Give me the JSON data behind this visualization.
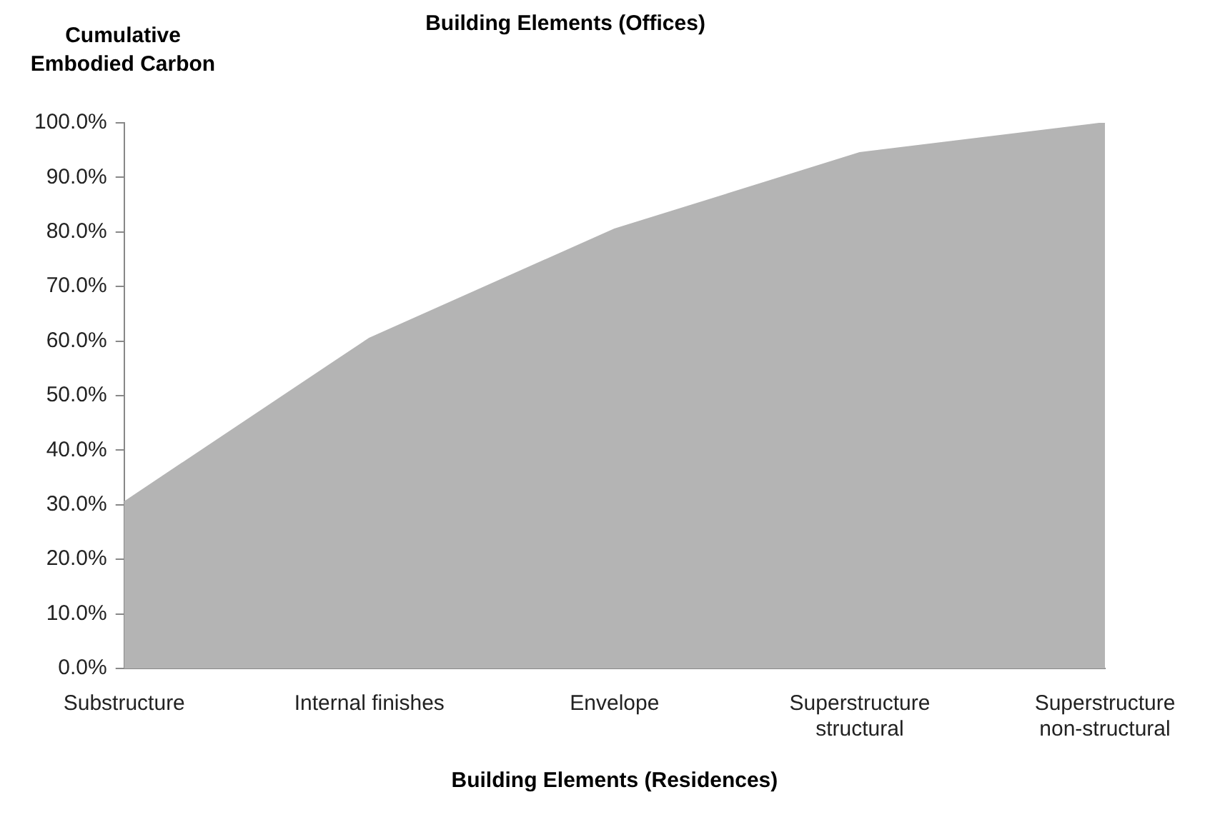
{
  "chart_data": {
    "type": "area",
    "title": "Building Elements (Offices)",
    "xlabel": "Building Elements (Residences)",
    "ylabel": "Cumulative Embodied Carbon",
    "categories": [
      "Substructure",
      "Internal finishes",
      "Envelope",
      "Superstructure structural",
      "Superstructure non-structural"
    ],
    "values": [
      30.5,
      60.5,
      80.5,
      94.5,
      100
    ],
    "color": "#b4b4b4",
    "ylim": [
      0,
      100
    ],
    "yticks": [
      {
        "value": 0,
        "label": "0.0%"
      },
      {
        "value": 10,
        "label": "10.0%"
      },
      {
        "value": 20,
        "label": "20.0%"
      },
      {
        "value": 30,
        "label": "30.0%"
      },
      {
        "value": 40,
        "label": "40.0%"
      },
      {
        "value": 50,
        "label": "50.0%"
      },
      {
        "value": 60,
        "label": "60.0%"
      },
      {
        "value": 70,
        "label": "70.0%"
      },
      {
        "value": 80,
        "label": "80.0%"
      },
      {
        "value": 90,
        "label": "90.0%"
      },
      {
        "value": 100,
        "label": "100.0%"
      }
    ],
    "grid": false,
    "legend": false
  }
}
